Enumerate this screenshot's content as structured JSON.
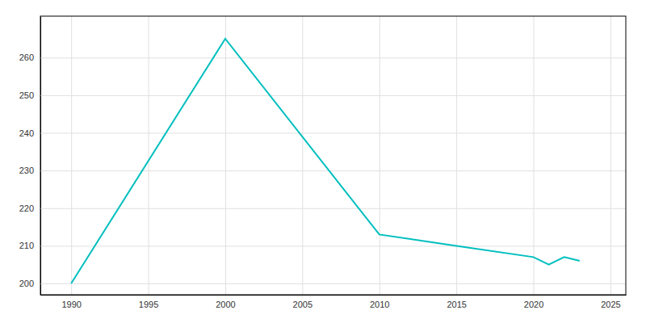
{
  "chart_data": {
    "type": "line",
    "x": [
      1990,
      2000,
      2010,
      2015,
      2020,
      2021,
      2022,
      2023
    ],
    "values": [
      200,
      265,
      213,
      210,
      207,
      205,
      207,
      206
    ],
    "color": "#00BFBF",
    "xlim": [
      1988,
      2026
    ],
    "ylim": [
      197,
      271
    ],
    "xticks": [
      1990,
      1995,
      2000,
      2005,
      2010,
      2015,
      2020,
      2025
    ],
    "yticks": [
      200,
      210,
      220,
      230,
      240,
      250,
      260
    ],
    "grid": true
  }
}
